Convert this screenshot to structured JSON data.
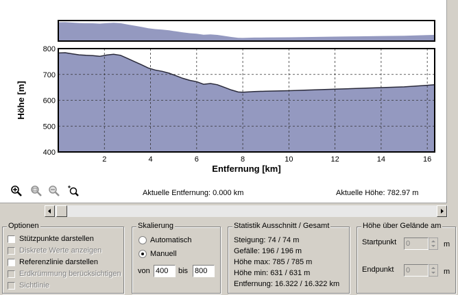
{
  "chart": {
    "ylabel": "Höhe [m]",
    "xlabel": "Entfernung [km]",
    "y_ticks": [
      "800",
      "700",
      "600",
      "500",
      "400"
    ],
    "x_ticks": [
      "2",
      "4",
      "6",
      "8",
      "10",
      "12",
      "14",
      "16"
    ],
    "fill_color": "#9499c0",
    "line_color": "#2a2a3a"
  },
  "chart_data": {
    "type": "area",
    "title": "",
    "xlabel": "Entfernung [km]",
    "ylabel": "Höhe [m]",
    "xlim": [
      0,
      16.322
    ],
    "ylim": [
      400,
      800
    ],
    "grid": true,
    "x": [
      0,
      0.3,
      0.6,
      0.9,
      1.2,
      1.5,
      1.8,
      2.1,
      2.4,
      2.7,
      3.0,
      3.3,
      3.6,
      3.9,
      4.2,
      4.5,
      4.8,
      5.1,
      5.4,
      5.7,
      6.0,
      6.3,
      6.6,
      6.9,
      7.2,
      7.5,
      7.8,
      8.0,
      8.5,
      9.0,
      10.0,
      11.0,
      12.0,
      13.0,
      14.0,
      15.0,
      15.5,
      16.0,
      16.322
    ],
    "y": [
      783,
      784,
      780,
      776,
      774,
      773,
      770,
      775,
      778,
      774,
      762,
      750,
      738,
      725,
      717,
      712,
      705,
      695,
      685,
      677,
      672,
      662,
      665,
      660,
      650,
      640,
      632,
      631,
      634,
      635,
      637,
      640,
      643,
      646,
      649,
      652,
      655,
      658,
      660
    ]
  },
  "toolbar": {
    "icons": [
      "zoom-in-icon",
      "zoom-fit-icon",
      "zoom-out-icon",
      "zoom-select-icon"
    ]
  },
  "status": {
    "distance": "Aktuelle Entfernung: 0.000 km",
    "height": "Aktuelle Höhe: 782.97 m"
  },
  "options": {
    "title": "Optionen",
    "items": [
      {
        "label": "Stützpunkte darstellen",
        "checked": false,
        "enabled": true
      },
      {
        "label": "Diskrete Werte anzeigen",
        "checked": false,
        "enabled": false
      },
      {
        "label": "Referenzlinie darstellen",
        "checked": false,
        "enabled": true
      },
      {
        "label": "Erdkrümmung berücksichtigen",
        "checked": false,
        "enabled": false
      },
      {
        "label": "Sichtlinie",
        "checked": false,
        "enabled": false
      }
    ]
  },
  "scaling": {
    "title": "Skalierung",
    "auto_label": "Automatisch",
    "manual_label": "Manuell",
    "selected": "Manuell",
    "from_label": "von",
    "to_label": "bis",
    "from_value": "400",
    "to_value": "800"
  },
  "stats": {
    "title": "Statistik  Ausschnitt / Gesamt",
    "rows": [
      "Steigung: 74 / 74 m",
      "Gefälle: 196 / 196 m",
      "Höhe max: 785 / 785 m",
      "Höhe min: 631 / 631 m",
      "Entfernung: 16.322 / 16.322 km"
    ]
  },
  "terrain": {
    "title": "Höhe über Gelände am",
    "start_label": "Startpunkt",
    "end_label": "Endpunkt",
    "start_value": "0",
    "end_value": "0",
    "unit": "m"
  }
}
